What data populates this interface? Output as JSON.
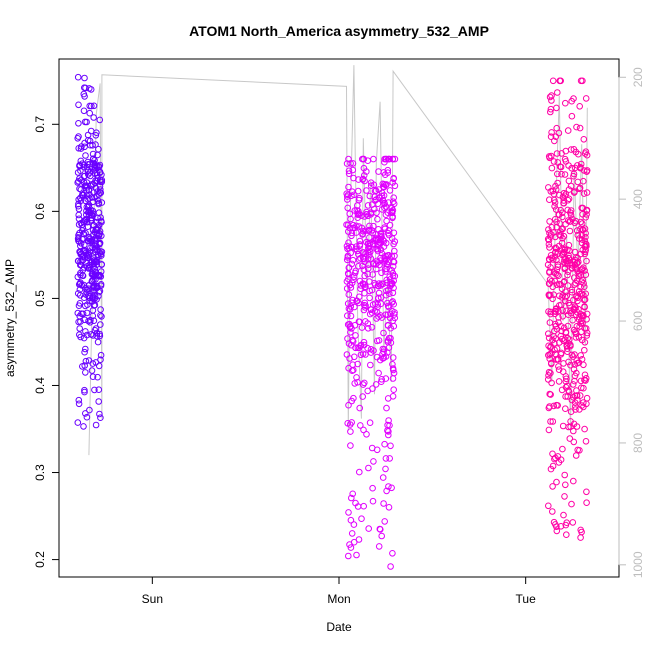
{
  "chart_data": {
    "type": "scatter",
    "title": "ATOM1 North_America asymmetry_532_AMP",
    "xlabel": "Date",
    "ylabel": "asymmetry_532_AMP",
    "x_ticks": [
      "Sun",
      "Mon",
      "Tue"
    ],
    "x_tick_positions": [
      0.5,
      1.5,
      2.5
    ],
    "xlim": [
      0.0,
      3.0
    ],
    "ylim": [
      0.18,
      0.775
    ],
    "y_ticks": [
      0.2,
      0.3,
      0.4,
      0.5,
      0.6,
      0.7
    ],
    "y2_ticks": [
      200,
      400,
      600,
      800,
      1000
    ],
    "y2lim": [
      1020,
      170
    ],
    "marker": "open-circle",
    "grid": false,
    "clusters": [
      {
        "color": "#6a00ff",
        "x_range": [
          0.1,
          0.23
        ],
        "y_core": [
          0.5,
          0.63
        ],
        "y_range": [
          0.35,
          0.755
        ],
        "n": 420
      },
      {
        "color": "#e100ff",
        "x_range": [
          1.54,
          1.8
        ],
        "y_core": [
          0.46,
          0.62
        ],
        "y_range": [
          0.19,
          0.66
        ],
        "n": 520
      },
      {
        "color": "#ff00a6",
        "x_range": [
          2.62,
          2.83
        ],
        "y_core": [
          0.43,
          0.62
        ],
        "y_range": [
          0.22,
          0.75
        ],
        "n": 520
      }
    ],
    "line_series": {
      "color": "#c8c8c8",
      "axis": "right",
      "points": [
        [
          0.16,
          820
        ],
        [
          0.2,
          260
        ],
        [
          0.22,
          210
        ],
        [
          0.23,
          760
        ],
        [
          0.23,
          196
        ],
        [
          1.54,
          215
        ],
        [
          1.55,
          780
        ],
        [
          1.56,
          430
        ],
        [
          1.58,
          180
        ],
        [
          1.6,
          600
        ],
        [
          1.62,
          760
        ],
        [
          1.63,
          300
        ],
        [
          1.65,
          560
        ],
        [
          1.67,
          370
        ],
        [
          1.69,
          720
        ],
        [
          1.7,
          340
        ],
        [
          1.72,
          240
        ],
        [
          1.74,
          650
        ],
        [
          1.76,
          530
        ],
        [
          1.78,
          700
        ],
        [
          1.79,
          190
        ],
        [
          2.62,
          540
        ],
        [
          2.64,
          700
        ],
        [
          2.66,
          420
        ],
        [
          2.68,
          230
        ],
        [
          2.7,
          600
        ],
        [
          2.72,
          460
        ],
        [
          2.74,
          780
        ],
        [
          2.76,
          350
        ],
        [
          2.78,
          520
        ],
        [
          2.8,
          310
        ],
        [
          2.82,
          640
        ],
        [
          2.83,
          250
        ]
      ]
    }
  }
}
